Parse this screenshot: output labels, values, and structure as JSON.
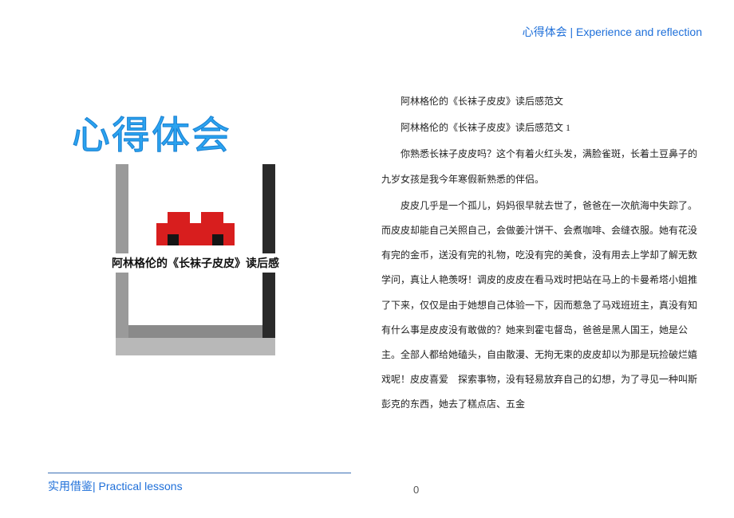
{
  "header": {
    "cn": "心得体会",
    "sep": "  | ",
    "en": "Experience and reflection"
  },
  "logo": {
    "text": "心得体会",
    "subtitle": "阿林格伦的《长袜子皮皮》读后感"
  },
  "content": {
    "p1": "阿林格伦的《长袜子皮皮》读后感范文",
    "p2": "阿林格伦的《长袜子皮皮》读后感范文 1",
    "p3": "你熟悉长袜子皮皮吗？这个有着火红头发，满脸雀斑，长着土豆鼻子的九岁女孩是我今年寒假新熟悉的伴侣。",
    "p4": "皮皮几乎是一个孤儿，妈妈很早就去世了，爸爸在一次航海中失踪了。而皮皮却能自己关照自己，会做姜汁饼干、会煮咖啡、会缝衣服。她有花没有完的金币，送没有完的礼物，吃没有完的美食，没有用去上学却了解无数学问，真让人艳羡呀！调皮的皮皮在看马戏时把站在马上的卡曼希塔小姐推了下来，仅仅是由于她想自己体验一下，因而惹急了马戏班班主，真没有知有什么事是皮皮没有敢做的？她来到霍屯督岛，爸爸是黑人国王，她是公主。全部人都给她磕头，自由散漫、无拘无束的皮皮却以为那是玩捡破烂嬉戏呢！皮皮喜爱　探索事物，没有轻易放弃自己的幻想，为了寻见一种叫斯彭克的东西，她去了糕点店、五金"
  },
  "footer": {
    "cn": "实用借鉴",
    "sep": "| ",
    "en": "Practical lessons",
    "page": "0"
  },
  "colors": {
    "primary": "#1e6fd9",
    "logo": "#2aa3f0",
    "red": "#d81e1e",
    "black": "#151515"
  }
}
